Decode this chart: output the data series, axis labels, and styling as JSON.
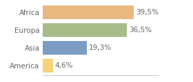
{
  "categories": [
    "America",
    "Asia",
    "Europa",
    "Africa"
  ],
  "values": [
    4.6,
    19.3,
    36.5,
    39.5
  ],
  "labels": [
    "4,6%",
    "19,3%",
    "36,5%",
    "39,5%"
  ],
  "bar_colors": [
    "#f5d47a",
    "#7b9dc4",
    "#a8bc8a",
    "#e8b87e"
  ],
  "background_color": "#ffffff",
  "xlim": [
    0,
    50
  ],
  "bar_height": 0.75,
  "label_fontsize": 7.5,
  "tick_fontsize": 7.5,
  "tick_color": "#666666",
  "label_color": "#666666",
  "spine_color": "#cccccc"
}
